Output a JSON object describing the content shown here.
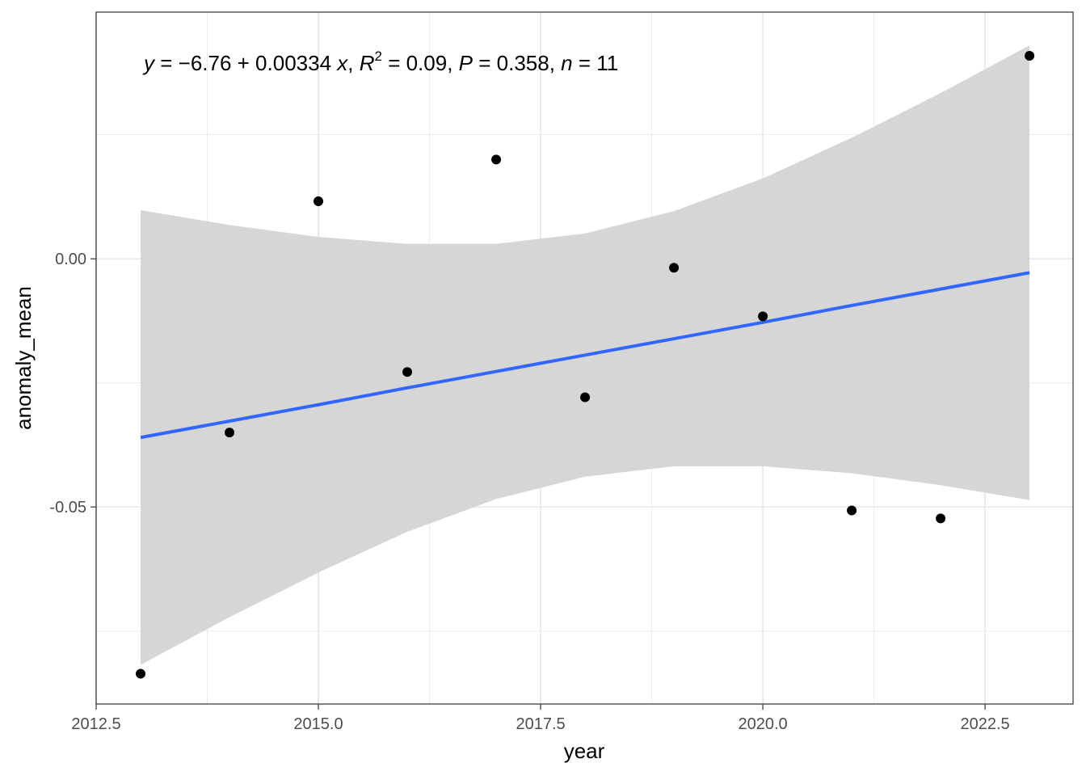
{
  "chart_data": {
    "type": "scatter",
    "title": "",
    "xlabel": "year",
    "ylabel": "anomaly_mean",
    "xlim": [
      2012.5,
      2023.49
    ],
    "ylim": [
      -0.0897,
      0.0497
    ],
    "grid": true,
    "x_ticks": [
      2012.5,
      2015.0,
      2017.5,
      2020.0,
      2022.5
    ],
    "x_tick_labels": [
      "2012.5",
      "2015.0",
      "2017.5",
      "2020.0",
      "2022.5"
    ],
    "y_ticks": [
      0.0,
      -0.05
    ],
    "y_tick_labels": [
      "0.00",
      "-0.05"
    ],
    "x": [
      2013,
      2014,
      2015,
      2016,
      2017,
      2018,
      2019,
      2020,
      2021,
      2022,
      2023
    ],
    "y": [
      -0.0836,
      -0.035,
      0.0116,
      -0.0228,
      0.02,
      -0.0279,
      -0.0018,
      -0.0116,
      -0.0507,
      -0.0523,
      0.0409
    ],
    "fit": {
      "x": [
        2013,
        2014,
        2015,
        2016,
        2017,
        2018,
        2019,
        2020,
        2021,
        2022,
        2023
      ],
      "y": [
        -0.036,
        -0.0327,
        -0.0294,
        -0.026,
        -0.0227,
        -0.0194,
        -0.0161,
        -0.0128,
        -0.0094,
        -0.0061,
        -0.0028
      ],
      "ci_upper": [
        0.0098,
        0.0068,
        0.0044,
        0.003,
        0.003,
        0.0051,
        0.0096,
        0.0162,
        0.0244,
        0.0334,
        0.043
      ],
      "ci_lower": [
        -0.0818,
        -0.0722,
        -0.0632,
        -0.055,
        -0.0484,
        -0.0439,
        -0.0418,
        -0.0418,
        -0.0432,
        -0.0456,
        -0.0486
      ]
    },
    "annotation": {
      "y": "y",
      "eq_part1": " = −6.76 + 0.00334 ",
      "x": "x",
      "sep1": ", ",
      "r": "R",
      "sup": "2",
      "eq_part2": " = 0.09, ",
      "p": "P",
      "eq_part3": " = 0.358, ",
      "n": "n",
      "eq_part4": " = 11"
    },
    "colors": {
      "line": "#3366FF",
      "band": "#D6D6D6",
      "points": "#000000",
      "grid": "#EBEBEB"
    }
  }
}
